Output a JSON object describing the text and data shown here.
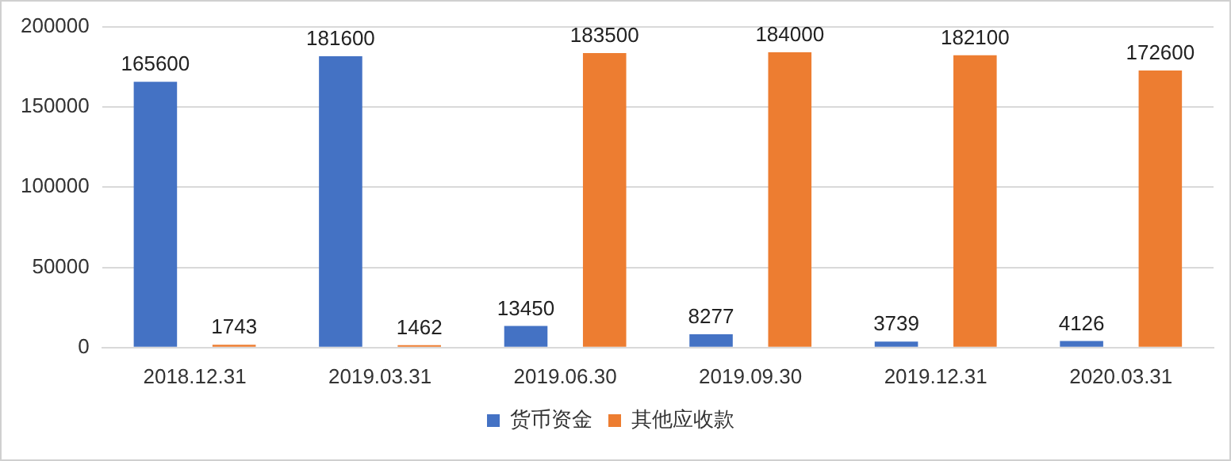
{
  "chart_data": {
    "type": "bar",
    "categories": [
      "2018.12.31",
      "2019.03.31",
      "2019.06.30",
      "2019.09.30",
      "2019.12.31",
      "2020.03.31"
    ],
    "series": [
      {
        "name": "货币资金",
        "color": "#4472c4",
        "values": [
          165600,
          181600,
          13450,
          8277,
          3739,
          4126
        ]
      },
      {
        "name": "其他应收款",
        "color": "#ed7d31",
        "values": [
          1743,
          1462,
          183500,
          184000,
          182100,
          172600
        ]
      }
    ],
    "ylim": [
      0,
      200000
    ],
    "yticks": [
      0,
      50000,
      100000,
      150000,
      200000
    ],
    "grid": "y",
    "legend": "bottom",
    "data_labels": true
  }
}
